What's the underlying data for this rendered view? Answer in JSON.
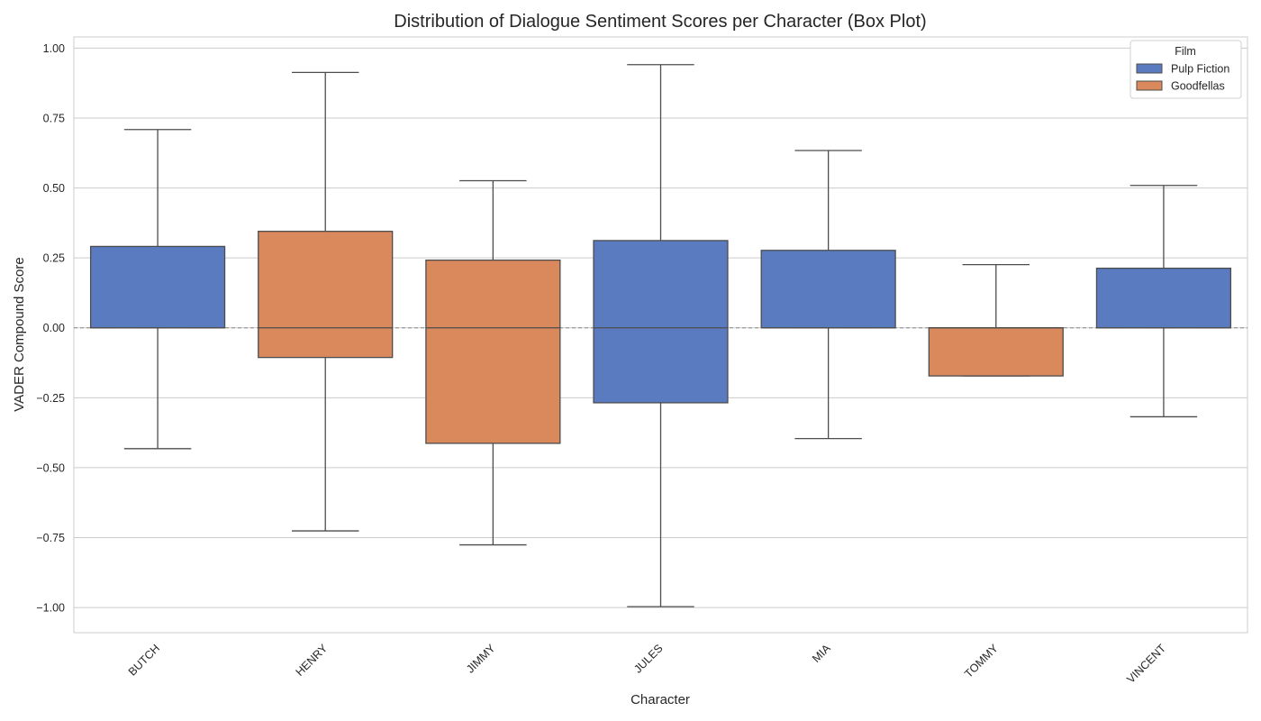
{
  "chart_data": {
    "type": "box",
    "title": "Distribution of Dialogue Sentiment Scores per Character (Box Plot)",
    "xlabel": "Character",
    "ylabel": "VADER Compound Score",
    "ylim": [
      -1.09,
      1.04
    ],
    "yticks": [
      {
        "value": 1.0,
        "label": "1.00"
      },
      {
        "value": 0.75,
        "label": "0.75"
      },
      {
        "value": 0.5,
        "label": "0.50"
      },
      {
        "value": 0.25,
        "label": "0.25"
      },
      {
        "value": 0.0,
        "label": "0.00"
      },
      {
        "value": -0.25,
        "label": "−0.25"
      },
      {
        "value": -0.5,
        "label": "−0.50"
      },
      {
        "value": -0.75,
        "label": "−0.75"
      },
      {
        "value": -1.0,
        "label": "−1.00"
      }
    ],
    "grid": true,
    "reference_line": 0.0,
    "legend": {
      "title": "Film",
      "position": "top-right",
      "entries": [
        {
          "name": "Pulp Fiction",
          "color": "#5a7bbf"
        },
        {
          "name": "Goodfellas",
          "color": "#d9895c"
        }
      ]
    },
    "categories": [
      "BUTCH",
      "HENRY",
      "JIMMY",
      "JULES",
      "MIA",
      "TOMMY",
      "VINCENT"
    ],
    "boxes": [
      {
        "category": "BUTCH",
        "film": "Pulp Fiction",
        "whisker_low": -0.432,
        "q1": 0.0,
        "median": 0.0,
        "q3": 0.291,
        "whisker_high": 0.709
      },
      {
        "category": "HENRY",
        "film": "Goodfellas",
        "whisker_low": -0.726,
        "q1": -0.106,
        "median": 0.0,
        "q3": 0.345,
        "whisker_high": 0.913
      },
      {
        "category": "JIMMY",
        "film": "Goodfellas",
        "whisker_low": -0.776,
        "q1": -0.413,
        "median": 0.0,
        "q3": 0.242,
        "whisker_high": 0.526
      },
      {
        "category": "JULES",
        "film": "Pulp Fiction",
        "whisker_low": -0.997,
        "q1": -0.268,
        "median": 0.0,
        "q3": 0.312,
        "whisker_high": 0.941
      },
      {
        "category": "MIA",
        "film": "Pulp Fiction",
        "whisker_low": -0.396,
        "q1": 0.0,
        "median": 0.0,
        "q3": 0.277,
        "whisker_high": 0.634
      },
      {
        "category": "TOMMY",
        "film": "Goodfellas",
        "whisker_low": -0.172,
        "q1": -0.172,
        "median": 0.0,
        "q3": 0.0,
        "whisker_high": 0.226
      },
      {
        "category": "VINCENT",
        "film": "Pulp Fiction",
        "whisker_low": -0.318,
        "q1": 0.0,
        "median": 0.0,
        "q3": 0.213,
        "whisker_high": 0.509
      }
    ]
  }
}
